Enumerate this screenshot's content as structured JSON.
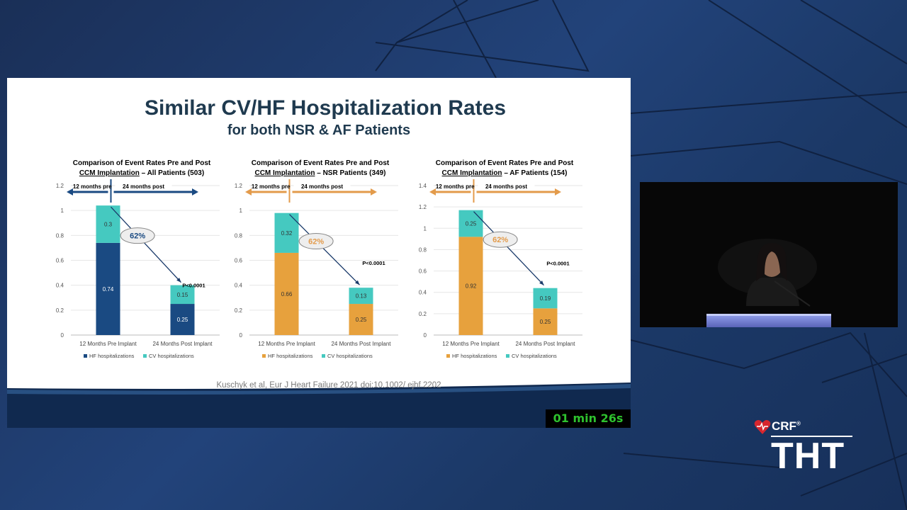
{
  "slide": {
    "title": "Similar CV/HF Hospitalization Rates",
    "subtitle": "for both NSR & AF Patients",
    "citation": "Kuschyk et al, Eur J Heart Failure 2021 doi:10.1002/ ejhf.2202"
  },
  "overlay": {
    "timer": "01 min 26s",
    "brand_small": "CRF",
    "event_small": "THT",
    "brand_large": "CRF",
    "event_large": "THT"
  },
  "colors": {
    "hf_blue": "#1a4a82",
    "cv_teal": "#45c9c0",
    "hf_orange": "#e7a13d",
    "arrow_orange": "#e39b4b",
    "slide_title": "#1f3a4f"
  },
  "chart_data": [
    {
      "type": "bar",
      "stacked": true,
      "title_line1": "Comparison of Event Rates Pre and Post",
      "title_line2_underlined": "CCM Implantation",
      "title_line2_rest": " – All Patients (503)",
      "categories": [
        "12 Months Pre Implant",
        "24 Months Post Implant"
      ],
      "series": [
        {
          "name": "HF hospitalizations",
          "values": [
            0.74,
            0.25
          ],
          "color": "#1a4a82"
        },
        {
          "name": "CV hospitalizations",
          "values": [
            0.3,
            0.15
          ],
          "color": "#45c9c0"
        }
      ],
      "ylim": [
        0,
        1.2
      ],
      "yticks": [
        "0",
        "0.2",
        "0.4",
        "0.6",
        "0.8",
        "1",
        "1.2"
      ],
      "period_pre": "12 months pre",
      "period_post": "24 months post",
      "period_arrow_color": "#1a4a82",
      "reduction_label": "62%",
      "reduction_color": "#1a4a82",
      "p_value": "P<0.0001",
      "legend_position": "bottom",
      "grid": true
    },
    {
      "type": "bar",
      "stacked": true,
      "title_line1": "Comparison of Event Rates Pre and Post",
      "title_line2_underlined": "CCM Implantation",
      "title_line2_rest": " – NSR Patients (349)",
      "categories": [
        "12 Months Pre Implant",
        "24 Months Post Implant"
      ],
      "series": [
        {
          "name": "HF hospitalizations",
          "values": [
            0.66,
            0.25
          ],
          "color": "#e7a13d"
        },
        {
          "name": "CV hospitalizations",
          "values": [
            0.32,
            0.13
          ],
          "color": "#45c9c0"
        }
      ],
      "ylim": [
        0,
        1.2
      ],
      "yticks": [
        "0",
        "0.2",
        "0.4",
        "0.6",
        "0.8",
        "1",
        "1.2"
      ],
      "period_pre": "12 months pre",
      "period_post": "24 months post",
      "period_arrow_color": "#e39b4b",
      "reduction_label": "62%",
      "reduction_color": "#e39b4b",
      "p_value": "P<0.0001",
      "legend_position": "bottom",
      "grid": true
    },
    {
      "type": "bar",
      "stacked": true,
      "title_line1": "Comparison of Event Rates Pre and Post",
      "title_line2_underlined": "CCM Implantation",
      "title_line2_rest": " – AF Patients (154)",
      "categories": [
        "12 Months Pre Implant",
        "24 Months Post Implant"
      ],
      "series": [
        {
          "name": "HF hospitalizations",
          "values": [
            0.92,
            0.25
          ],
          "color": "#e7a13d"
        },
        {
          "name": "CV hospitalizations",
          "values": [
            0.25,
            0.19
          ],
          "color": "#45c9c0"
        }
      ],
      "ylim": [
        0,
        1.4
      ],
      "yticks": [
        "0",
        "0.2",
        "0.4",
        "0.6",
        "0.8",
        "1",
        "1.2",
        "1.4"
      ],
      "period_pre": "12 months pre",
      "period_post": "24 months post",
      "period_arrow_color": "#e39b4b",
      "reduction_label": "62%",
      "reduction_color": "#e39b4b",
      "p_value": "P<0.0001",
      "legend_position": "bottom",
      "grid": true
    }
  ]
}
